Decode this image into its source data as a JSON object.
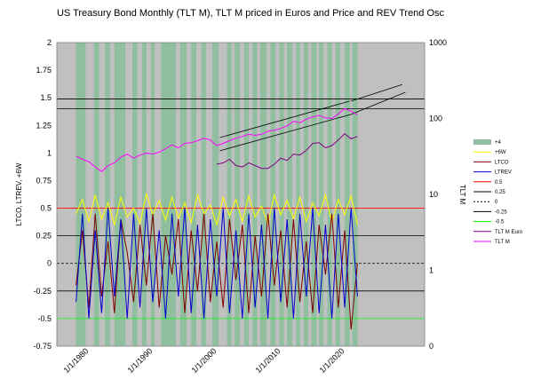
{
  "chart_data": {
    "type": "line",
    "title": "US Treasury Bond Monthly (TLT M), TLT M priced in Euros and Price and REV Trend Osc",
    "ylabel_left": "LTCO, LTREV, +6W",
    "ylabel_right": "TLT M",
    "ylim_left": [
      -0.75,
      2
    ],
    "ylim_right_log": [
      0.1,
      1000
    ],
    "x_range": [
      1975.0,
      2032.5
    ],
    "yticks_left": [
      "2",
      "1.75",
      "1.5",
      "1.25",
      "1",
      "0.75",
      "0.5",
      "0.25",
      "0",
      "-0.25",
      "-0.5",
      "-0.75"
    ],
    "yticks_right": [
      "1000",
      "100",
      "10",
      "1",
      "0"
    ],
    "xticks": [
      "1/1/1980",
      "1/1/1990",
      "1/1/2000",
      "1/1/2010",
      "1/1/2020"
    ],
    "grid": false,
    "legend_position": "right",
    "colors": {
      "plot_background": "#c0c0c0",
      "green_bands": "#8fbf9f",
      "yellow": "#ffff00",
      "ltco": "#800000",
      "ltrev": "#0000cc",
      "line_05": "#ff0000",
      "line_025": "#000000",
      "line_0": "#000000",
      "line_m025": "#000000",
      "line_m05": "#00ff00",
      "tlt_euro": "#800080",
      "tlt_m": "#ff00ff"
    },
    "legend": [
      {
        "label": "+4",
        "color": "#8fbf9f",
        "style": "band"
      },
      {
        "label": "+6W",
        "color": "#ffff00",
        "style": "line"
      },
      {
        "label": "LTCO",
        "color": "#800000",
        "style": "line"
      },
      {
        "label": "LTREV",
        "color": "#0000cc",
        "style": "line"
      },
      {
        "label": "0.5",
        "color": "#ff0000",
        "style": "line"
      },
      {
        "label": "0.25",
        "color": "#000000",
        "style": "line"
      },
      {
        "label": "0",
        "color": "#000000",
        "style": "dashed"
      },
      {
        "label": "-0.25",
        "color": "#000000",
        "style": "line"
      },
      {
        "label": "-0.5",
        "color": "#00ff00",
        "style": "line"
      },
      {
        "label": "TLT M Euro",
        "color": "#800080",
        "style": "line"
      },
      {
        "label": "TLT M",
        "color": "#ff00ff",
        "style": "line"
      }
    ],
    "reference_lines_left": [
      0.5,
      0.25,
      0,
      -0.25,
      -0.5
    ],
    "horizontal_lines_left": [
      1.49,
      1.4
    ],
    "trend_channels_left": [
      {
        "x": [
          2000.5,
          2020.8
        ],
        "y": [
          1.14,
          1.47
        ]
      },
      {
        "x": [
          2000.5,
          2021.0
        ],
        "y": [
          1.02,
          1.35
        ]
      },
      {
        "x": [
          2021.0,
          2029.0
        ],
        "y": [
          1.47,
          1.62
        ]
      },
      {
        "x": [
          2021.0,
          2029.5
        ],
        "y": [
          1.35,
          1.55
        ]
      }
    ],
    "green_bands": [
      [
        1978.0,
        1979.5
      ],
      [
        1980.8,
        1981.6
      ],
      [
        1982.5,
        1983.3
      ],
      [
        1984.0,
        1985.7
      ],
      [
        1986.8,
        1987.6
      ],
      [
        1988.3,
        1989.0
      ],
      [
        1989.7,
        1990.3
      ],
      [
        1991.3,
        1993.6
      ],
      [
        1994.3,
        1995.3
      ],
      [
        1996.0,
        1996.8
      ],
      [
        1997.6,
        1998.3
      ],
      [
        1999.3,
        2000.3
      ],
      [
        2001.6,
        2002.3
      ],
      [
        2002.8,
        2003.6
      ],
      [
        2004.3,
        2005.0
      ],
      [
        2005.6,
        2006.3
      ],
      [
        2006.8,
        2007.8
      ],
      [
        2008.4,
        2009.2
      ],
      [
        2009.8,
        2010.5
      ],
      [
        2011.0,
        2011.8
      ],
      [
        2012.4,
        2013.0
      ],
      [
        2013.6,
        2014.3
      ],
      [
        2014.8,
        2015.6
      ],
      [
        2016.0,
        2016.7
      ],
      [
        2017.3,
        2018.0
      ],
      [
        2018.6,
        2019.3
      ],
      [
        2020.0,
        2020.8
      ],
      [
        2021.2,
        2022.0
      ]
    ],
    "series": [
      {
        "name": "TLT M",
        "axis": "right",
        "x": [
          1978.0,
          1979.0,
          1980.0,
          1981.0,
          1982.0,
          1983.0,
          1984.0,
          1985.0,
          1986.0,
          1987.0,
          1988.0,
          1989.0,
          1990.0,
          1991.0,
          1992.0,
          1993.0,
          1994.0,
          1995.0,
          1996.0,
          1997.0,
          1998.0,
          1999.0,
          2000.0,
          2001.0,
          2002.0,
          2003.0,
          2004.0,
          2005.0,
          2006.0,
          2007.0,
          2008.0,
          2009.0,
          2010.0,
          2011.0,
          2012.0,
          2013.0,
          2014.0,
          2015.0,
          2016.0,
          2017.0,
          2018.0,
          2019.0,
          2020.0,
          2021.0,
          2022.0
        ],
        "y": [
          32,
          29,
          27,
          23,
          20,
          24,
          26,
          31,
          34,
          30,
          33,
          35,
          34,
          36,
          40,
          45,
          41,
          47,
          48,
          51,
          55,
          52,
          44,
          47,
          51,
          55,
          58,
          62,
          60,
          62,
          68,
          70,
          74,
          80,
          92,
          88,
          98,
          105,
          110,
          102,
          100,
          115,
          135,
          125,
          112
        ]
      },
      {
        "name": "TLT M Euro",
        "axis": "right",
        "x": [
          2000.0,
          2001.0,
          2002.0,
          2003.0,
          2004.0,
          2005.0,
          2006.0,
          2007.0,
          2008.0,
          2009.0,
          2010.0,
          2011.0,
          2012.0,
          2013.0,
          2014.0,
          2015.0,
          2016.0,
          2017.0,
          2018.0,
          2019.0,
          2020.0,
          2021.0,
          2022.0
        ],
        "y": [
          25,
          26,
          29,
          24,
          23,
          26,
          24,
          22,
          22,
          25,
          30,
          28,
          34,
          33,
          38,
          47,
          48,
          41,
          44,
          52,
          63,
          54,
          58
        ]
      },
      {
        "name": "+6W",
        "axis": "left",
        "x": [
          1978.0,
          1979.0,
          1980.0,
          1981.0,
          1982.0,
          1983.0,
          1984.0,
          1985.0,
          1986.0,
          1987.0,
          1988.0,
          1989.0,
          1990.0,
          1991.0,
          1992.0,
          1993.0,
          1994.0,
          1995.0,
          1996.0,
          1997.0,
          1998.0,
          1999.0,
          2000.0,
          2001.0,
          2002.0,
          2003.0,
          2004.0,
          2005.0,
          2006.0,
          2007.0,
          2008.0,
          2009.0,
          2010.0,
          2011.0,
          2012.0,
          2013.0,
          2014.0,
          2015.0,
          2016.0,
          2017.0,
          2018.0,
          2019.0,
          2020.0,
          2021.0,
          2022.0
        ],
        "y": [
          0.45,
          0.58,
          0.38,
          0.62,
          0.4,
          0.55,
          0.35,
          0.6,
          0.42,
          0.5,
          0.36,
          0.63,
          0.44,
          0.57,
          0.39,
          0.6,
          0.41,
          0.55,
          0.37,
          0.62,
          0.45,
          0.53,
          0.35,
          0.6,
          0.43,
          0.58,
          0.38,
          0.61,
          0.42,
          0.52,
          0.36,
          0.62,
          0.44,
          0.57,
          0.4,
          0.6,
          0.38,
          0.55,
          0.43,
          0.62,
          0.37,
          0.58,
          0.44,
          0.61,
          0.35
        ]
      },
      {
        "name": "LTCO",
        "axis": "left",
        "x": [
          1978.0,
          1979.0,
          1980.0,
          1981.0,
          1982.0,
          1983.0,
          1984.0,
          1985.0,
          1986.0,
          1987.0,
          1988.0,
          1989.0,
          1990.0,
          1991.0,
          1992.0,
          1993.0,
          1994.0,
          1995.0,
          1996.0,
          1997.0,
          1998.0,
          1999.0,
          2000.0,
          2001.0,
          2002.0,
          2003.0,
          2004.0,
          2005.0,
          2006.0,
          2007.0,
          2008.0,
          2009.0,
          2010.0,
          2011.0,
          2012.0,
          2013.0,
          2014.0,
          2015.0,
          2016.0,
          2017.0,
          2018.0,
          2019.0,
          2020.0,
          2021.0,
          2022.0
        ],
        "y": [
          -0.2,
          0.3,
          -0.4,
          0.45,
          -0.3,
          0.2,
          -0.45,
          0.4,
          0.1,
          -0.35,
          0.35,
          -0.2,
          0.45,
          -0.4,
          0.25,
          -0.1,
          0.4,
          -0.45,
          0.3,
          -0.25,
          0.45,
          -0.35,
          0.2,
          -0.4,
          0.4,
          -0.15,
          0.35,
          -0.45,
          0.25,
          -0.3,
          0.45,
          -0.2,
          0.3,
          -0.4,
          0.4,
          -0.35,
          0.2,
          -0.45,
          0.35,
          -0.1,
          0.45,
          -0.4,
          0.3,
          -0.6,
          0.0
        ]
      },
      {
        "name": "LTREV",
        "axis": "left",
        "x": [
          1978.0,
          1979.0,
          1980.0,
          1981.0,
          1982.0,
          1983.0,
          1984.0,
          1985.0,
          1986.0,
          1987.0,
          1988.0,
          1989.0,
          1990.0,
          1991.0,
          1992.0,
          1993.0,
          1994.0,
          1995.0,
          1996.0,
          1997.0,
          1998.0,
          1999.0,
          2000.0,
          2001.0,
          2002.0,
          2003.0,
          2004.0,
          2005.0,
          2006.0,
          2007.0,
          2008.0,
          2009.0,
          2010.0,
          2011.0,
          2012.0,
          2013.0,
          2014.0,
          2015.0,
          2016.0,
          2017.0,
          2018.0,
          2019.0,
          2020.0,
          2021.0,
          2022.0
        ],
        "y": [
          -0.35,
          0.45,
          -0.5,
          0.3,
          -0.45,
          0.5,
          -0.3,
          0.4,
          -0.5,
          0.45,
          -0.4,
          0.5,
          -0.35,
          0.3,
          -0.5,
          0.45,
          -0.3,
          0.5,
          -0.45,
          0.35,
          -0.5,
          0.4,
          -0.3,
          0.5,
          -0.45,
          0.3,
          -0.5,
          0.45,
          -0.4,
          0.35,
          -0.5,
          0.5,
          -0.35,
          0.4,
          -0.5,
          0.45,
          -0.3,
          0.5,
          -0.45,
          0.35,
          -0.5,
          0.45,
          -0.4,
          0.5,
          -0.3
        ]
      }
    ]
  }
}
